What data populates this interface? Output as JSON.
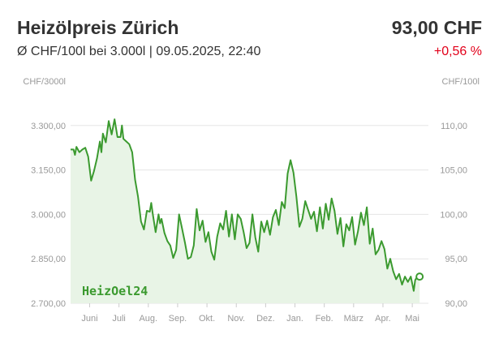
{
  "header": {
    "title": "Heizölpreis Zürich",
    "price": "93,00 CHF",
    "subtitle": "Ø CHF/100l bei 3.000l | 09.05.2025, 22:40",
    "change": "+0,56 %"
  },
  "watermark": "HeizOel24",
  "colors": {
    "line": "#3b9a2f",
    "area": "#e8f4e6",
    "grid": "#e5e5e5",
    "change": "#e2001a"
  },
  "chart_data": {
    "type": "area",
    "left_axis": {
      "unit": "CHF/3000l",
      "ticks": [
        "3.300,00",
        "3.150,00",
        "3.000,00",
        "2.850,00",
        "2.700,00"
      ],
      "tick_values": [
        3300,
        3150,
        3000,
        2850,
        2700
      ]
    },
    "right_axis": {
      "unit": "CHF/100l",
      "ticks": [
        "110,00",
        "105,00",
        "100,00",
        "95,00",
        "90,00"
      ],
      "tick_values": [
        110,
        105,
        100,
        95,
        90
      ]
    },
    "ylim": [
      90,
      115
    ],
    "xlim": [
      0,
      12.2
    ],
    "grid": true,
    "x_ticks": [
      "Juni",
      "Juli",
      "Aug.",
      "Sep.",
      "Okt.",
      "Nov.",
      "Dez.",
      "Jan.",
      "Feb.",
      "März",
      "Apr.",
      "Mai"
    ],
    "x_tick_positions": [
      0.65,
      1.65,
      2.65,
      3.65,
      4.65,
      5.65,
      6.65,
      7.65,
      8.65,
      9.65,
      10.65,
      11.65
    ],
    "series": [
      {
        "x": [
          0,
          0.1,
          0.15,
          0.2,
          0.3,
          0.4,
          0.5,
          0.6,
          0.7,
          0.8,
          0.9,
          1.0,
          1.05,
          1.1,
          1.2,
          1.3,
          1.4,
          1.5,
          1.6,
          1.7,
          1.75,
          1.8,
          1.9,
          2.0,
          2.1,
          2.2,
          2.3,
          2.4,
          2.5,
          2.6,
          2.7,
          2.75,
          2.8,
          2.9,
          3.0,
          3.05,
          3.1,
          3.2,
          3.3,
          3.4,
          3.5,
          3.6,
          3.7,
          3.8,
          3.9,
          4.0,
          4.1,
          4.2,
          4.3,
          4.4,
          4.5,
          4.6,
          4.7,
          4.8,
          4.9,
          5.0,
          5.1,
          5.2,
          5.3,
          5.4,
          5.5,
          5.6,
          5.7,
          5.8,
          5.9,
          6.0,
          6.1,
          6.2,
          6.3,
          6.4,
          6.5,
          6.6,
          6.7,
          6.8,
          6.9,
          7.0,
          7.1,
          7.2,
          7.3,
          7.4,
          7.5,
          7.6,
          7.7,
          7.8,
          7.9,
          8.0,
          8.1,
          8.2,
          8.3,
          8.4,
          8.5,
          8.6,
          8.7,
          8.8,
          8.9,
          9.0,
          9.1,
          9.2,
          9.3,
          9.4,
          9.5,
          9.6,
          9.7,
          9.8,
          9.9,
          10.0,
          10.1,
          10.2,
          10.3,
          10.4,
          10.5,
          10.6,
          10.7,
          10.8,
          10.9,
          11.0,
          11.1,
          11.2,
          11.3,
          11.4,
          11.5,
          11.6,
          11.7,
          11.75,
          11.8,
          11.85,
          11.9
        ],
        "values": [
          107.3,
          107.3,
          106.7,
          107.6,
          107.0,
          107.3,
          107.5,
          106.5,
          103.8,
          104.9,
          106.3,
          108.2,
          107.0,
          109.1,
          108.1,
          110.5,
          109.0,
          110.7,
          108.7,
          108.7,
          110.0,
          108.5,
          108.2,
          107.9,
          107.0,
          103.9,
          102.0,
          99.2,
          98.3,
          100.4,
          100.3,
          101.3,
          100.1,
          98.0,
          100.0,
          99.0,
          99.5,
          97.9,
          97.0,
          96.5,
          95.1,
          96.0,
          100.0,
          98.4,
          96.8,
          95.0,
          95.2,
          96.5,
          100.6,
          98.2,
          99.3,
          96.9,
          98.0,
          95.8,
          94.9,
          97.5,
          99.0,
          98.3,
          100.4,
          97.5,
          100.0,
          97.2,
          100.0,
          99.5,
          98.0,
          96.2,
          96.8,
          100.0,
          97.4,
          95.8,
          99.2,
          98.0,
          99.3,
          97.7,
          99.7,
          100.5,
          98.8,
          101.4,
          100.7,
          104.6,
          106.1,
          104.7,
          102.0,
          98.6,
          99.5,
          101.5,
          100.5,
          99.5,
          100.3,
          98.1,
          100.8,
          98.4,
          101.2,
          99.4,
          101.8,
          100.4,
          97.8,
          99.6,
          96.4,
          98.9,
          98.2,
          99.7,
          96.6,
          98.1,
          100.2,
          98.8,
          100.8,
          96.7,
          98.4,
          95.5,
          96.0,
          97.0,
          96.1,
          93.9,
          95.0,
          93.6,
          92.7,
          93.3,
          92.1,
          93.0,
          92.4,
          93.0,
          91.4,
          92.6,
          92.9,
          93.0,
          93.0
        ]
      }
    ]
  }
}
